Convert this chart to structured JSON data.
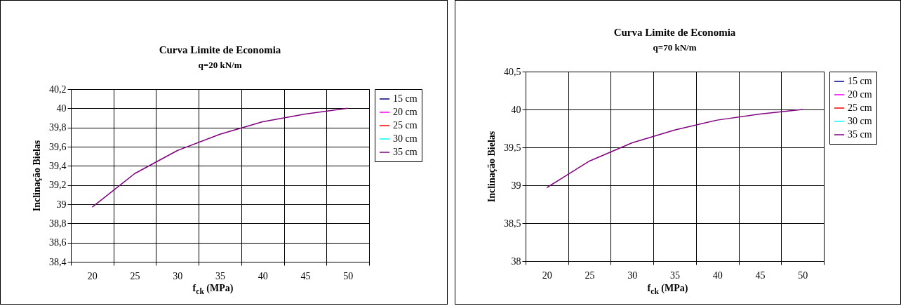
{
  "chart_data": [
    {
      "type": "line",
      "title": "Curva Limite de Economia",
      "subtitle": "q=20 kN/m",
      "xlabel": "f$_{ck}$ (MPa)",
      "ylabel": "Inclinação Bielas",
      "categories": [
        "20",
        "25",
        "30",
        "35",
        "40",
        "45",
        "50"
      ],
      "series": [
        {
          "name": "15 cm",
          "color": "#000080",
          "values": [
            null,
            null,
            null,
            null,
            null,
            null,
            null
          ]
        },
        {
          "name": "20 cm",
          "color": "#ff00ff",
          "values": [
            null,
            null,
            null,
            null,
            null,
            null,
            null
          ]
        },
        {
          "name": "25 cm",
          "color": "#ff0000",
          "values": [
            null,
            null,
            null,
            null,
            null,
            null,
            null
          ]
        },
        {
          "name": "30 cm",
          "color": "#00ffff",
          "values": [
            null,
            null,
            null,
            null,
            null,
            null,
            null
          ]
        },
        {
          "name": "35 cm",
          "color": "#800080",
          "values": [
            38.97,
            39.32,
            39.56,
            39.73,
            39.86,
            39.94,
            40.0
          ]
        }
      ],
      "ylim": [
        38.4,
        40.2
      ],
      "yticks": [
        {
          "value": 38.4,
          "label": "38,4"
        },
        {
          "value": 38.6,
          "label": "38,6"
        },
        {
          "value": 38.8,
          "label": "38,8"
        },
        39,
        {
          "value": 39.2,
          "label": "39,2"
        },
        {
          "value": 39.4,
          "label": "39,4"
        },
        {
          "value": 39.6,
          "label": "39,6"
        },
        {
          "value": 39.8,
          "label": "39,8"
        },
        40,
        {
          "value": 40.2,
          "label": "40,2"
        }
      ],
      "grid": true,
      "legend": "right"
    },
    {
      "type": "line",
      "title": "Curva Limite de Economia",
      "subtitle": "q=70 kN/m",
      "xlabel": "f$_{ck}$ (MPa)",
      "ylabel": "Inclinação Bielas",
      "categories": [
        "20",
        "25",
        "30",
        "35",
        "40",
        "45",
        "50"
      ],
      "series": [
        {
          "name": "15 cm",
          "color": "#000080",
          "values": [
            null,
            null,
            null,
            null,
            null,
            null,
            null
          ]
        },
        {
          "name": "20 cm",
          "color": "#ff00ff",
          "values": [
            null,
            null,
            null,
            null,
            null,
            null,
            null
          ]
        },
        {
          "name": "25 cm",
          "color": "#ff0000",
          "values": [
            null,
            null,
            null,
            null,
            null,
            null,
            null
          ]
        },
        {
          "name": "30 cm",
          "color": "#00ffff",
          "values": [
            null,
            null,
            null,
            null,
            null,
            null,
            null
          ]
        },
        {
          "name": "35 cm",
          "color": "#800080",
          "values": [
            38.97,
            39.32,
            39.56,
            39.73,
            39.86,
            39.94,
            40.0
          ]
        }
      ],
      "ylim": [
        38,
        40.5
      ],
      "yticks": [
        38,
        {
          "value": 38.5,
          "label": "38,5"
        },
        39,
        {
          "value": 39.5,
          "label": "39,5"
        },
        40,
        {
          "value": 40.5,
          "label": "40,5"
        }
      ],
      "grid": true,
      "legend": "right"
    }
  ]
}
